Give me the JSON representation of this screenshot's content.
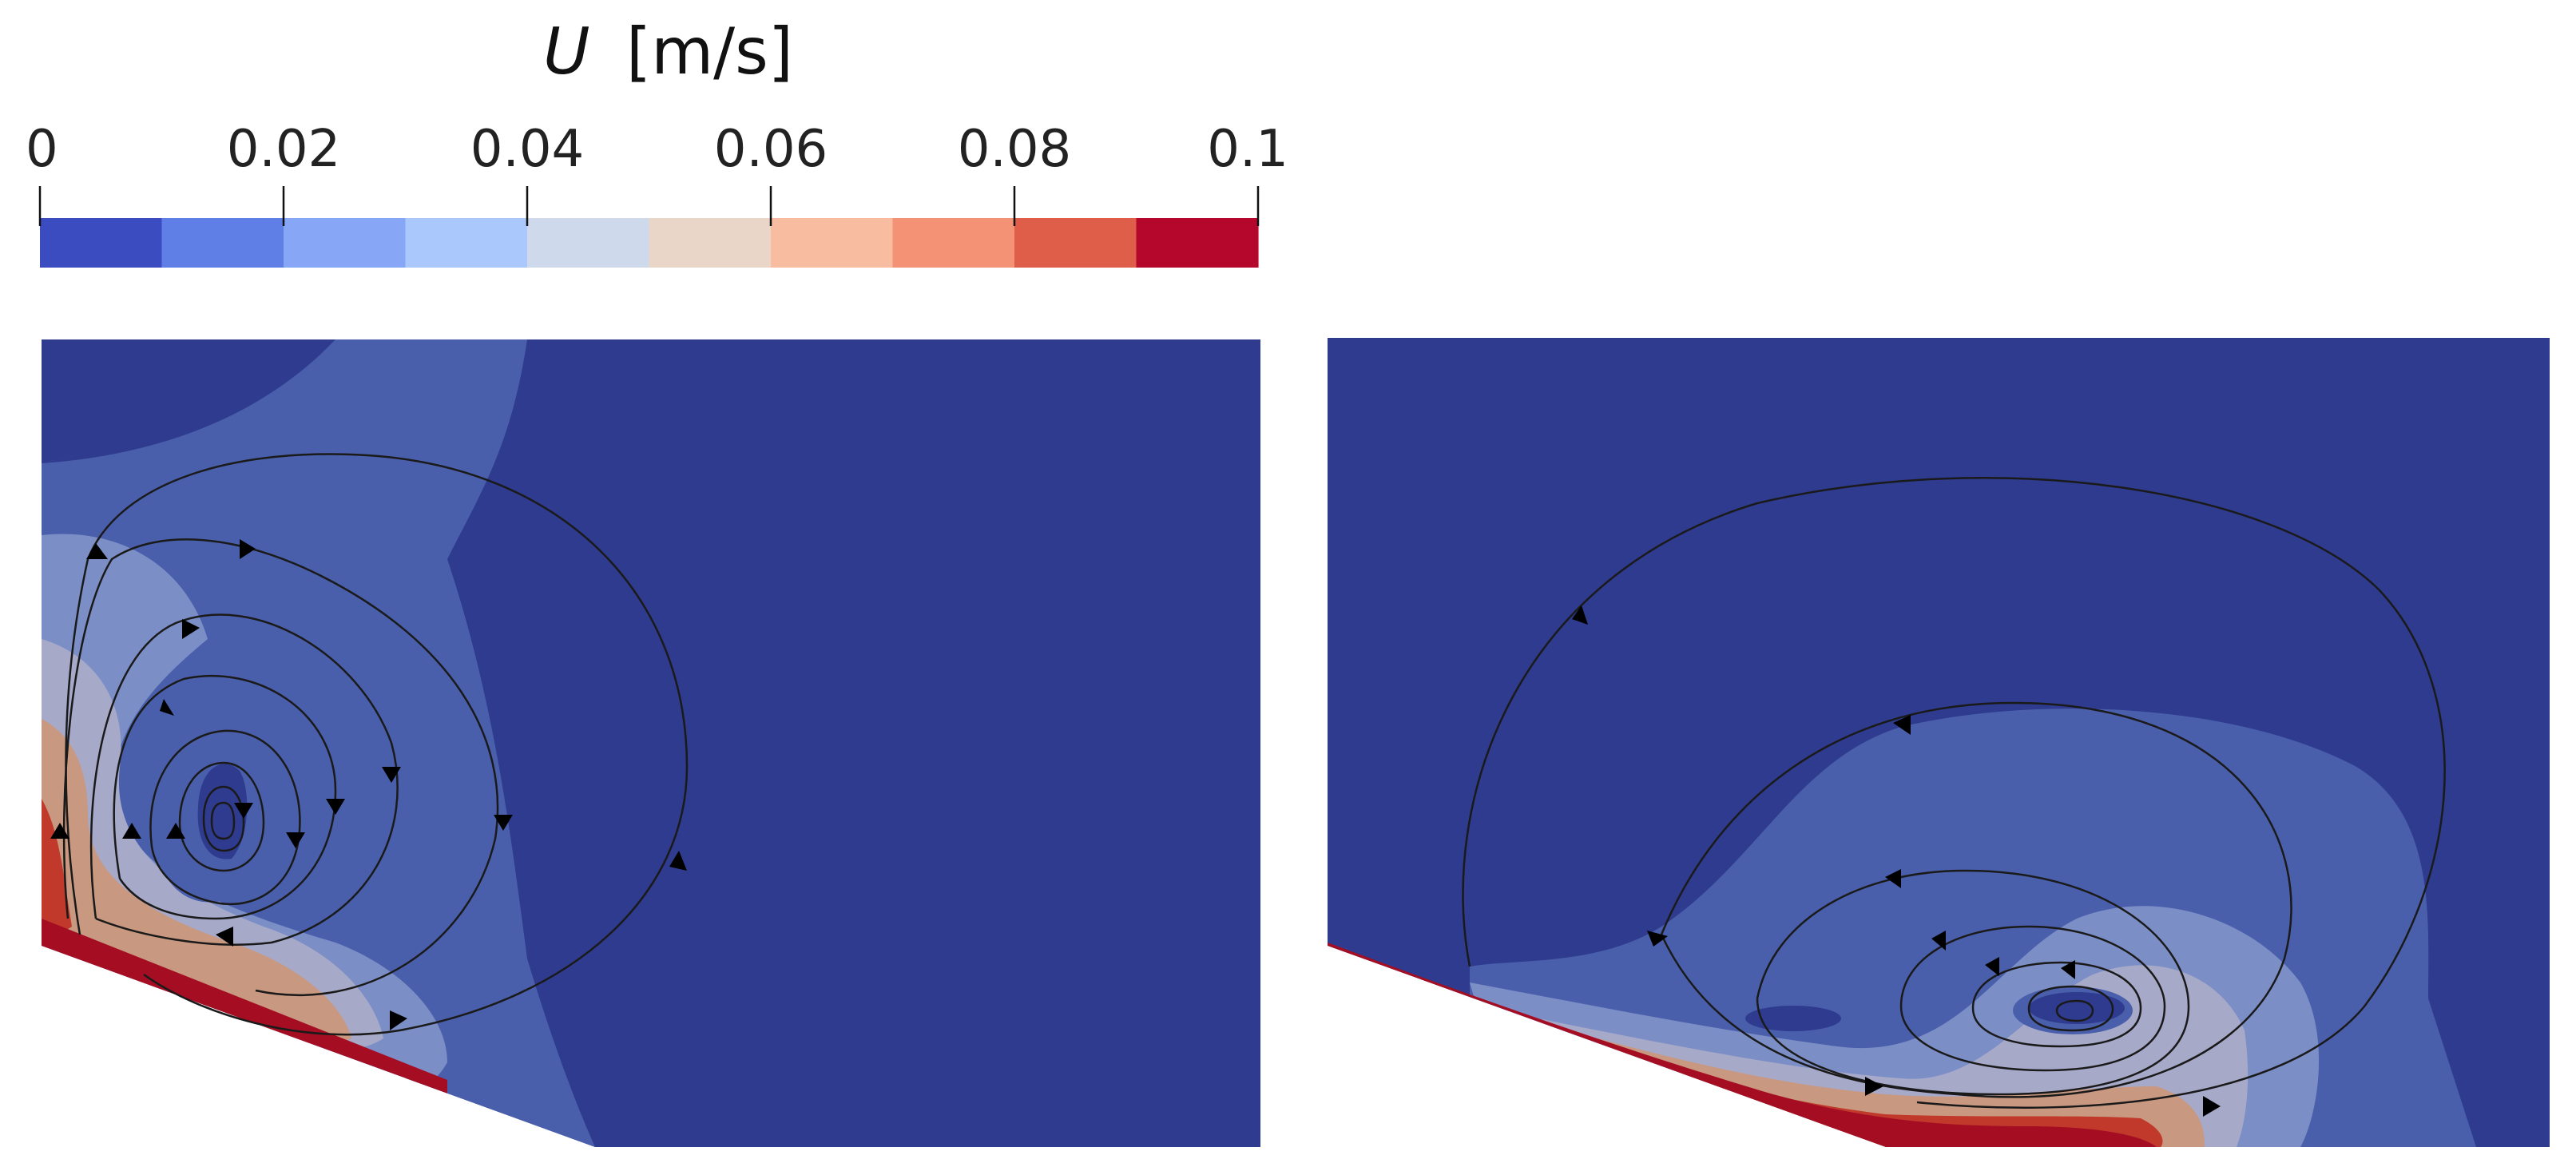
{
  "colorbar": {
    "title_symbol": "U",
    "title_unit": "[m/s]",
    "ticks": [
      "0",
      "0.02",
      "0.04",
      "0.06",
      "0.08",
      "0.1"
    ],
    "range": [
      0,
      0.1
    ],
    "bands": 10,
    "colors": [
      "#3b4cc0",
      "#5977e3",
      "#7b9ff9",
      "#9ebeff",
      "#c0d4f5",
      "#dddcdc",
      "#f2cbb7",
      "#f7ac8e",
      "#ee8468",
      "#d65244",
      "#b40426"
    ],
    "band_colors": [
      "#3b4cc0",
      "#5f7fe6",
      "#88a6f6",
      "#abc8fc",
      "#cfd9ec",
      "#ead6c9",
      "#f8bda0",
      "#f39274",
      "#de5e4a",
      "#b4072b"
    ]
  },
  "panels": [
    {
      "name": "left",
      "field_colors": [
        "#2e3b8e",
        "#4a5fab",
        "#7b8ec6",
        "#c89880",
        "#c0392b",
        "#a50e22"
      ]
    },
    {
      "name": "right",
      "field_colors": [
        "#2e3b8e",
        "#4a5fab",
        "#7b8ec6",
        "#c89880",
        "#c0392b",
        "#a50e22"
      ]
    }
  ]
}
